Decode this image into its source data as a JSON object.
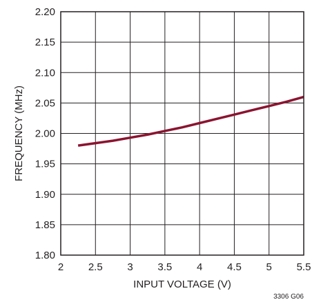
{
  "chart_data": {
    "type": "line",
    "title": "",
    "xlabel": "INPUT VOLTAGE (V)",
    "ylabel": "FREQUENCY (MHz)",
    "xlim": [
      2,
      5.5
    ],
    "ylim": [
      1.8,
      2.2
    ],
    "x_ticks": [
      2,
      2.5,
      3,
      3.5,
      4,
      4.5,
      5,
      5.5
    ],
    "x_tick_labels": [
      "2",
      "2.5",
      "3",
      "3.5",
      "4",
      "4.5",
      "5",
      "5.5"
    ],
    "y_ticks": [
      1.8,
      1.85,
      1.9,
      1.95,
      2.0,
      2.05,
      2.1,
      2.15,
      2.2
    ],
    "y_tick_labels": [
      "1.80",
      "1.85",
      "1.90",
      "1.95",
      "2.00",
      "2.05",
      "2.10",
      "2.15",
      "2.20"
    ],
    "grid": true,
    "series": [
      {
        "color": "#8b1430",
        "x": [
          2.25,
          2.5,
          2.75,
          3.0,
          3.25,
          3.5,
          3.75,
          4.0,
          4.25,
          4.5,
          4.75,
          5.0,
          5.25,
          5.5
        ],
        "y": [
          1.98,
          1.984,
          1.988,
          1.993,
          1.998,
          2.004,
          2.01,
          2.017,
          2.024,
          2.031,
          2.038,
          2.045,
          2.052,
          2.06
        ]
      }
    ]
  },
  "figure_id": "3306 G06"
}
